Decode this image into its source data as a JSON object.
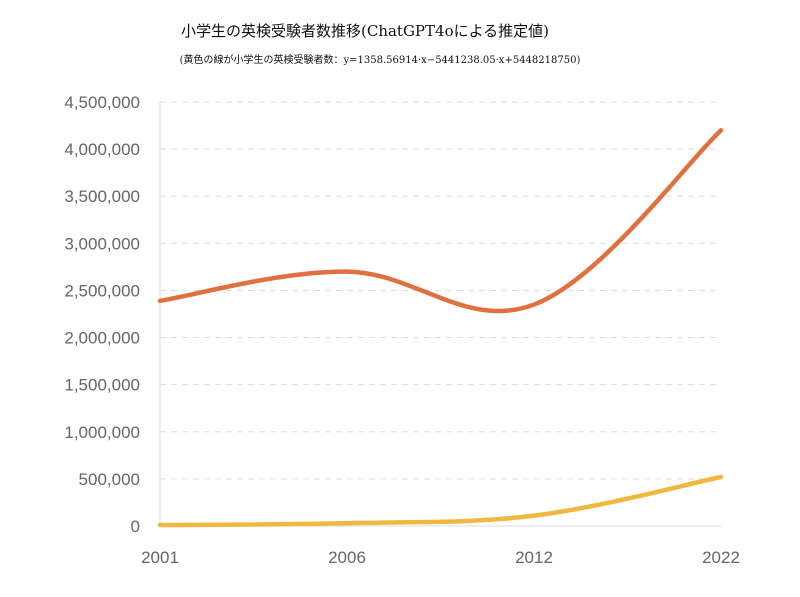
{
  "chart_data": {
    "type": "line",
    "title": "小学生の英検受験者数推移(ChatGPT4oによる推定値)",
    "subtitle": "(黄色の線が小学生の英検受験者数：y=1358.56914·x−5441238.05·x+5448218750)",
    "xlabel": "",
    "ylabel": "",
    "categories": [
      "2001",
      "2006",
      "2012",
      "2022"
    ],
    "ylim": [
      0,
      4500000
    ],
    "yticks": [
      0,
      500000,
      1000000,
      1500000,
      2000000,
      2500000,
      3000000,
      3500000,
      4000000,
      4500000
    ],
    "ytick_labels": [
      "0",
      "500,000",
      "1,000,000",
      "1,500,000",
      "2,000,000",
      "2,500,000",
      "3,000,000",
      "3,500,000",
      "4,000,000",
      "4,500,000"
    ],
    "grid": true,
    "series": [
      {
        "values": [
          2390000,
          2700000,
          2350000,
          4200000
        ],
        "color": "#e07040"
      },
      {
        "values": [
          10000,
          30000,
          110000,
          520000
        ],
        "color": "#f0b840"
      }
    ]
  }
}
